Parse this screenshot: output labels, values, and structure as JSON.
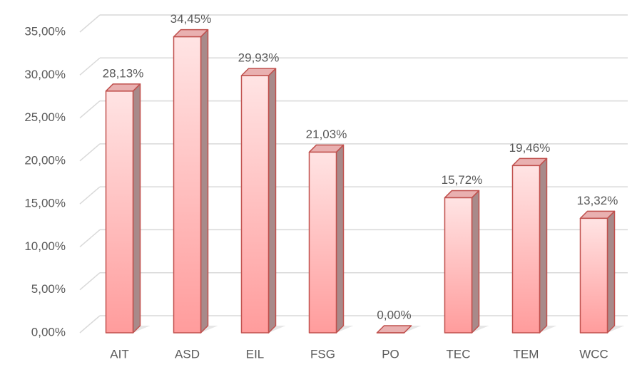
{
  "chart_data": {
    "type": "bar3d",
    "categories": [
      "AIT",
      "ASD",
      "EIL",
      "FSG",
      "PO",
      "TEC",
      "TEM",
      "WCC"
    ],
    "values": [
      28.13,
      34.45,
      29.93,
      21.03,
      0,
      15.72,
      19.46,
      13.32
    ],
    "value_labels": [
      "28,13%",
      "34,45%",
      "29,93%",
      "21,03%",
      "0,00%",
      "15,72%",
      "19,46%",
      "13,32%"
    ],
    "color": "#ff9c9c",
    "ylim": [
      0,
      35
    ],
    "yticks": [
      {
        "value": 0,
        "label": "0,00%"
      },
      {
        "value": 5,
        "label": "5,00%"
      },
      {
        "value": 10,
        "label": "10,00%"
      },
      {
        "value": 15,
        "label": "15,00%"
      },
      {
        "value": 20,
        "label": "20,00%"
      },
      {
        "value": 25,
        "label": "25,00%"
      },
      {
        "value": 30,
        "label": "30,00%"
      },
      {
        "value": 35,
        "label": "35,00%"
      }
    ],
    "grid": true
  }
}
